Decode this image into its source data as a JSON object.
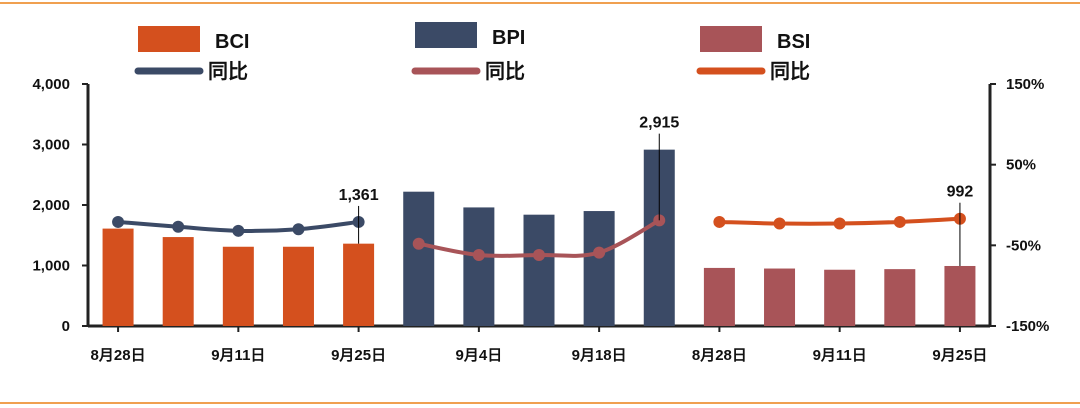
{
  "colors": {
    "bci": "#d4501e",
    "bpi": "#3b4a66",
    "bsi": "#a85458",
    "rule": "#f0a050",
    "axis": "#222222"
  },
  "legend": [
    {
      "key": "bci_bar",
      "label": "BCI",
      "kind": "bar",
      "color": "#d4501e"
    },
    {
      "key": "bci_yoy",
      "label": "同比",
      "kind": "line",
      "color": "#3b4a66"
    },
    {
      "key": "bpi_bar",
      "label": "BPI",
      "kind": "bar",
      "color": "#3b4a66"
    },
    {
      "key": "bpi_yoy",
      "label": "同比",
      "kind": "line",
      "color": "#a85458"
    },
    {
      "key": "bsi_bar",
      "label": "BSI",
      "kind": "bar",
      "color": "#a85458"
    },
    {
      "key": "bsi_yoy",
      "label": "同比",
      "kind": "line",
      "color": "#d4501e"
    }
  ],
  "chart_data": {
    "type": "bar",
    "x_tick_labels": [
      "8月28日",
      "9月11日",
      "9月25日",
      "9月4日",
      "9月18日",
      "8月28日",
      "9月11日",
      "9月25日"
    ],
    "left_axis": {
      "ticks": [
        "0",
        "1,000",
        "2,000",
        "3,000",
        "4,000"
      ],
      "ylim": [
        0,
        4000
      ]
    },
    "right_axis": {
      "ticks": [
        "-150%",
        "-50%",
        "50%",
        "150%"
      ],
      "ylim": [
        -150,
        150
      ]
    },
    "groups": [
      {
        "bar_series": "BCI",
        "bar_color": "#d4501e",
        "line_color": "#3b4a66",
        "bars": [
          1610,
          1470,
          1310,
          1310,
          1361
        ],
        "yoy": [
          -21,
          -27,
          -32,
          -30,
          -21
        ],
        "labeled_index": 4,
        "label": "1,361"
      },
      {
        "bar_series": "BPI",
        "bar_color": "#3b4a66",
        "line_color": "#a85458",
        "bars": [
          2220,
          1960,
          1840,
          1900,
          2915
        ],
        "yoy": [
          -48,
          -62,
          -62,
          -59,
          -19
        ],
        "labeled_index": 4,
        "label": "2,915"
      },
      {
        "bar_series": "BSI",
        "bar_color": "#a85458",
        "line_color": "#d4501e",
        "bars": [
          960,
          950,
          930,
          940,
          992
        ],
        "yoy": [
          -21,
          -23,
          -23,
          -21,
          -17
        ],
        "labeled_index": 4,
        "label": "992"
      }
    ]
  }
}
